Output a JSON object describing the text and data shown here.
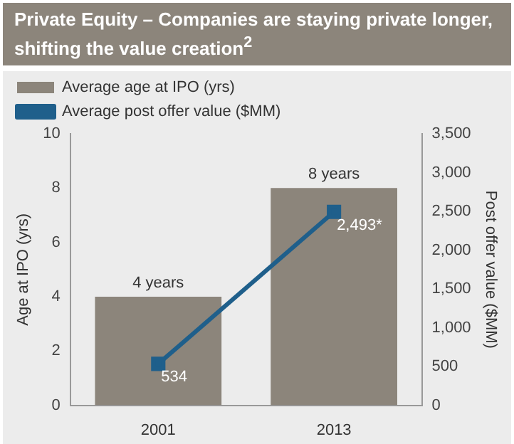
{
  "chart_data": {
    "type": "bar",
    "title": "Private Equity – Companies are staying private longer, shifting the value creation$^{2}$",
    "ylabel": "Age at IPO (yrs)",
    "y2label": "Post offer value ($MM)",
    "categories": [
      "2001",
      "2013"
    ],
    "series": [
      {
        "name": "Average age at IPO (yrs)",
        "color": "#8c857b",
        "values": [
          4,
          8
        ],
        "value_labels": [
          "4 years",
          "8 years"
        ]
      },
      {
        "name": "Average post offer value ($MM)",
        "type": "line",
        "axis": "y2",
        "color": "#1f5f8b",
        "values": [
          534,
          2493
        ],
        "value_labels": [
          "534",
          "2,493*"
        ],
        "marker": "square"
      }
    ],
    "ylim": [
      0,
      10
    ],
    "yticks": [
      0,
      2,
      4,
      6,
      8,
      10
    ],
    "y2lim": [
      0,
      3500
    ],
    "y2ticks": [
      0,
      500,
      {
        "value": 1000,
        "label": "1,000"
      },
      {
        "value": 1500,
        "label": "1,500"
      },
      {
        "value": 2000,
        "label": "2,000"
      },
      {
        "value": 2500,
        "label": "2,500"
      },
      {
        "value": 3000,
        "label": "3,000"
      },
      {
        "value": 3500,
        "label": "3,500"
      }
    ],
    "grid": false,
    "legend": "top left"
  }
}
